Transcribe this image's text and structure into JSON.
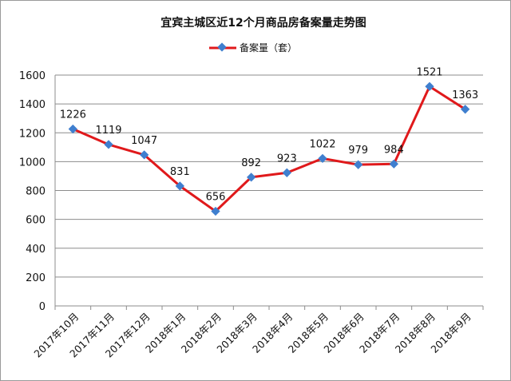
{
  "chart_data": {
    "type": "line",
    "title": "宜宾主城区近12个月商品房备案量走势图",
    "categories": [
      "2017年10月",
      "2017年11月",
      "2017年12月",
      "2018年1月",
      "2018年2月",
      "2018年3月",
      "2018年4月",
      "2018年5月",
      "2018年6月",
      "2018年7月",
      "2018年8月",
      "2018年9月"
    ],
    "series": [
      {
        "name": "备案量（套）",
        "values": [
          1226,
          1119,
          1047,
          831,
          656,
          892,
          923,
          1022,
          979,
          984,
          1521,
          1363
        ],
        "color": "#e0191b",
        "marker_color": "#3f7fcf"
      }
    ],
    "ylim": [
      0,
      1600
    ],
    "yticks": [
      0,
      200,
      400,
      600,
      800,
      1000,
      1200,
      1400,
      1600
    ],
    "grid": true,
    "legend_position": "top"
  }
}
